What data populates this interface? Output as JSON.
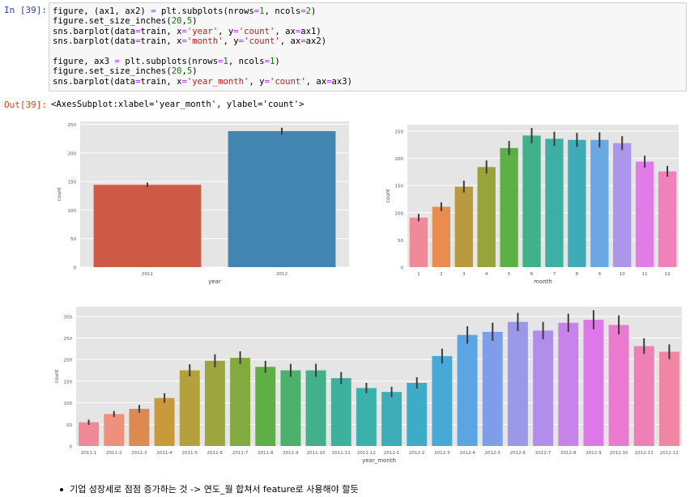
{
  "cell": {
    "in_prompt": "In [39]:",
    "out_prompt": "Out[39]:",
    "code_lines": [
      "figure, (ax1, ax2) = plt.subplots(nrows=1, ncols=2)",
      "figure.set_size_inches(20,5)",
      "sns.barplot(data=train, x='year', y='count', ax=ax1)",
      "sns.barplot(data=train, x='month', y='count', ax=ax2)",
      "",
      "figure, ax3 = plt.subplots(nrows=1, ncols=1)",
      "figure.set_size_inches(20,5)",
      "sns.barplot(data=train, x='year_month', y='count', ax=ax3)"
    ],
    "output_text": "<AxesSubplot:xlabel='year_month', ylabel='count'>"
  },
  "note": {
    "text": "기업 성장세로 점점 증가하는 것 -> 연도_월 합쳐서 feature로 사용해야 할듯"
  },
  "chart_data": [
    {
      "type": "bar",
      "title": "",
      "xlabel": "year",
      "ylabel": "count",
      "categories": [
        "2011",
        "2012"
      ],
      "values": [
        144,
        238
      ],
      "errors": [
        4,
        6
      ],
      "ylim": [
        0,
        255
      ],
      "yticks": [
        0,
        50,
        100,
        150,
        200,
        250
      ],
      "colors": [
        "#cf5a46",
        "#4285b0"
      ]
    },
    {
      "type": "bar",
      "title": "",
      "xlabel": "month",
      "ylabel": "count",
      "categories": [
        "1",
        "2",
        "3",
        "4",
        "5",
        "6",
        "7",
        "8",
        "9",
        "10",
        "11",
        "12"
      ],
      "values": [
        91,
        111,
        148,
        184,
        219,
        242,
        236,
        234,
        234,
        228,
        194,
        176
      ],
      "errors": [
        7,
        8,
        11,
        12,
        13,
        14,
        13,
        13,
        14,
        13,
        11,
        10
      ],
      "ylim": [
        0,
        262
      ],
      "yticks": [
        0,
        50,
        100,
        150,
        200,
        250
      ],
      "colors": [
        "#f08a98",
        "#e88d4e",
        "#b99a3e",
        "#98a43b",
        "#5cb045",
        "#41b18b",
        "#3eafa3",
        "#3fabb7",
        "#6aa8e3",
        "#ab96ea",
        "#e27ae8",
        "#f082b9"
      ]
    },
    {
      "type": "bar",
      "title": "",
      "xlabel": "year_month",
      "ylabel": "count",
      "categories": [
        "2011-1",
        "2011-2",
        "2011-3",
        "2011-4",
        "2011-5",
        "2011-6",
        "2011-7",
        "2011-8",
        "2011-9",
        "2011-10",
        "2011-11",
        "2011-12",
        "2012-1",
        "2012-2",
        "2012-3",
        "2012-4",
        "2012-5",
        "2012-6",
        "2012-7",
        "2012-8",
        "2012-9",
        "2012-10",
        "2012-11",
        "2012-12"
      ],
      "values": [
        55,
        74,
        86,
        111,
        175,
        197,
        204,
        183,
        175,
        175,
        157,
        134,
        125,
        146,
        208,
        257,
        264,
        287,
        267,
        285,
        292,
        280,
        231,
        218
      ],
      "errors": [
        6,
        7,
        9,
        11,
        14,
        15,
        15,
        14,
        15,
        15,
        14,
        12,
        12,
        13,
        17,
        20,
        21,
        21,
        20,
        21,
        22,
        22,
        18,
        17
      ],
      "ylim": [
        0,
        322
      ],
      "yticks": [
        0,
        50,
        100,
        150,
        200,
        250,
        300
      ],
      "colors": [
        "#f08a98",
        "#ef907c",
        "#dc8a51",
        "#c79b3c",
        "#b4a03c",
        "#9da63c",
        "#83aa3f",
        "#5eb045",
        "#4cb26b",
        "#42b18a",
        "#3db19e",
        "#3cb0ab",
        "#3daeb8",
        "#3facc7",
        "#46a9d6",
        "#5aa5e4",
        "#7f9ee9",
        "#9b97ea",
        "#b08ee9",
        "#c783e9",
        "#de78e8",
        "#ea7acf",
        "#ee7fb7",
        "#f085a4"
      ]
    }
  ]
}
